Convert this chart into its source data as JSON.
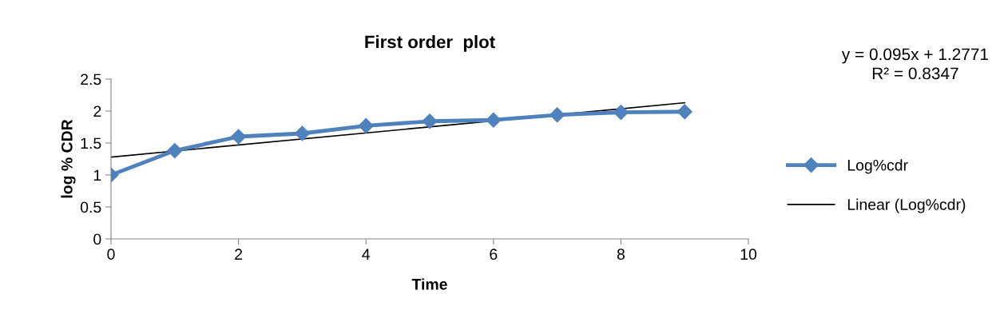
{
  "chart_data": {
    "type": "line",
    "title": "First order  plot",
    "xlabel": "Time",
    "ylabel": "log % CDR",
    "x": [
      0,
      1,
      2,
      3,
      4,
      5,
      6,
      7,
      8,
      9
    ],
    "series": [
      {
        "name": "Log%cdr",
        "color": "#4f81bd",
        "marker": "diamond",
        "values": [
          1.0,
          1.38,
          1.6,
          1.65,
          1.77,
          1.84,
          1.86,
          1.94,
          1.98,
          1.99
        ]
      },
      {
        "name": "Linear (Log%cdr)",
        "type": "line",
        "color": "#000000",
        "marker": "none",
        "x": [
          0,
          9
        ],
        "values": [
          1.28,
          2.13
        ]
      }
    ],
    "xlim": [
      0,
      10
    ],
    "xticks": [
      0,
      2,
      4,
      6,
      8,
      10
    ],
    "ylim": [
      0,
      2.5
    ],
    "yticks": [
      0,
      0.5,
      1,
      1.5,
      2,
      2.5
    ],
    "grid": false,
    "legend": "right",
    "line_style": "solid",
    "annotations": [
      "y = 0.095x + 1.2771\nR² = 0.8347"
    ]
  }
}
